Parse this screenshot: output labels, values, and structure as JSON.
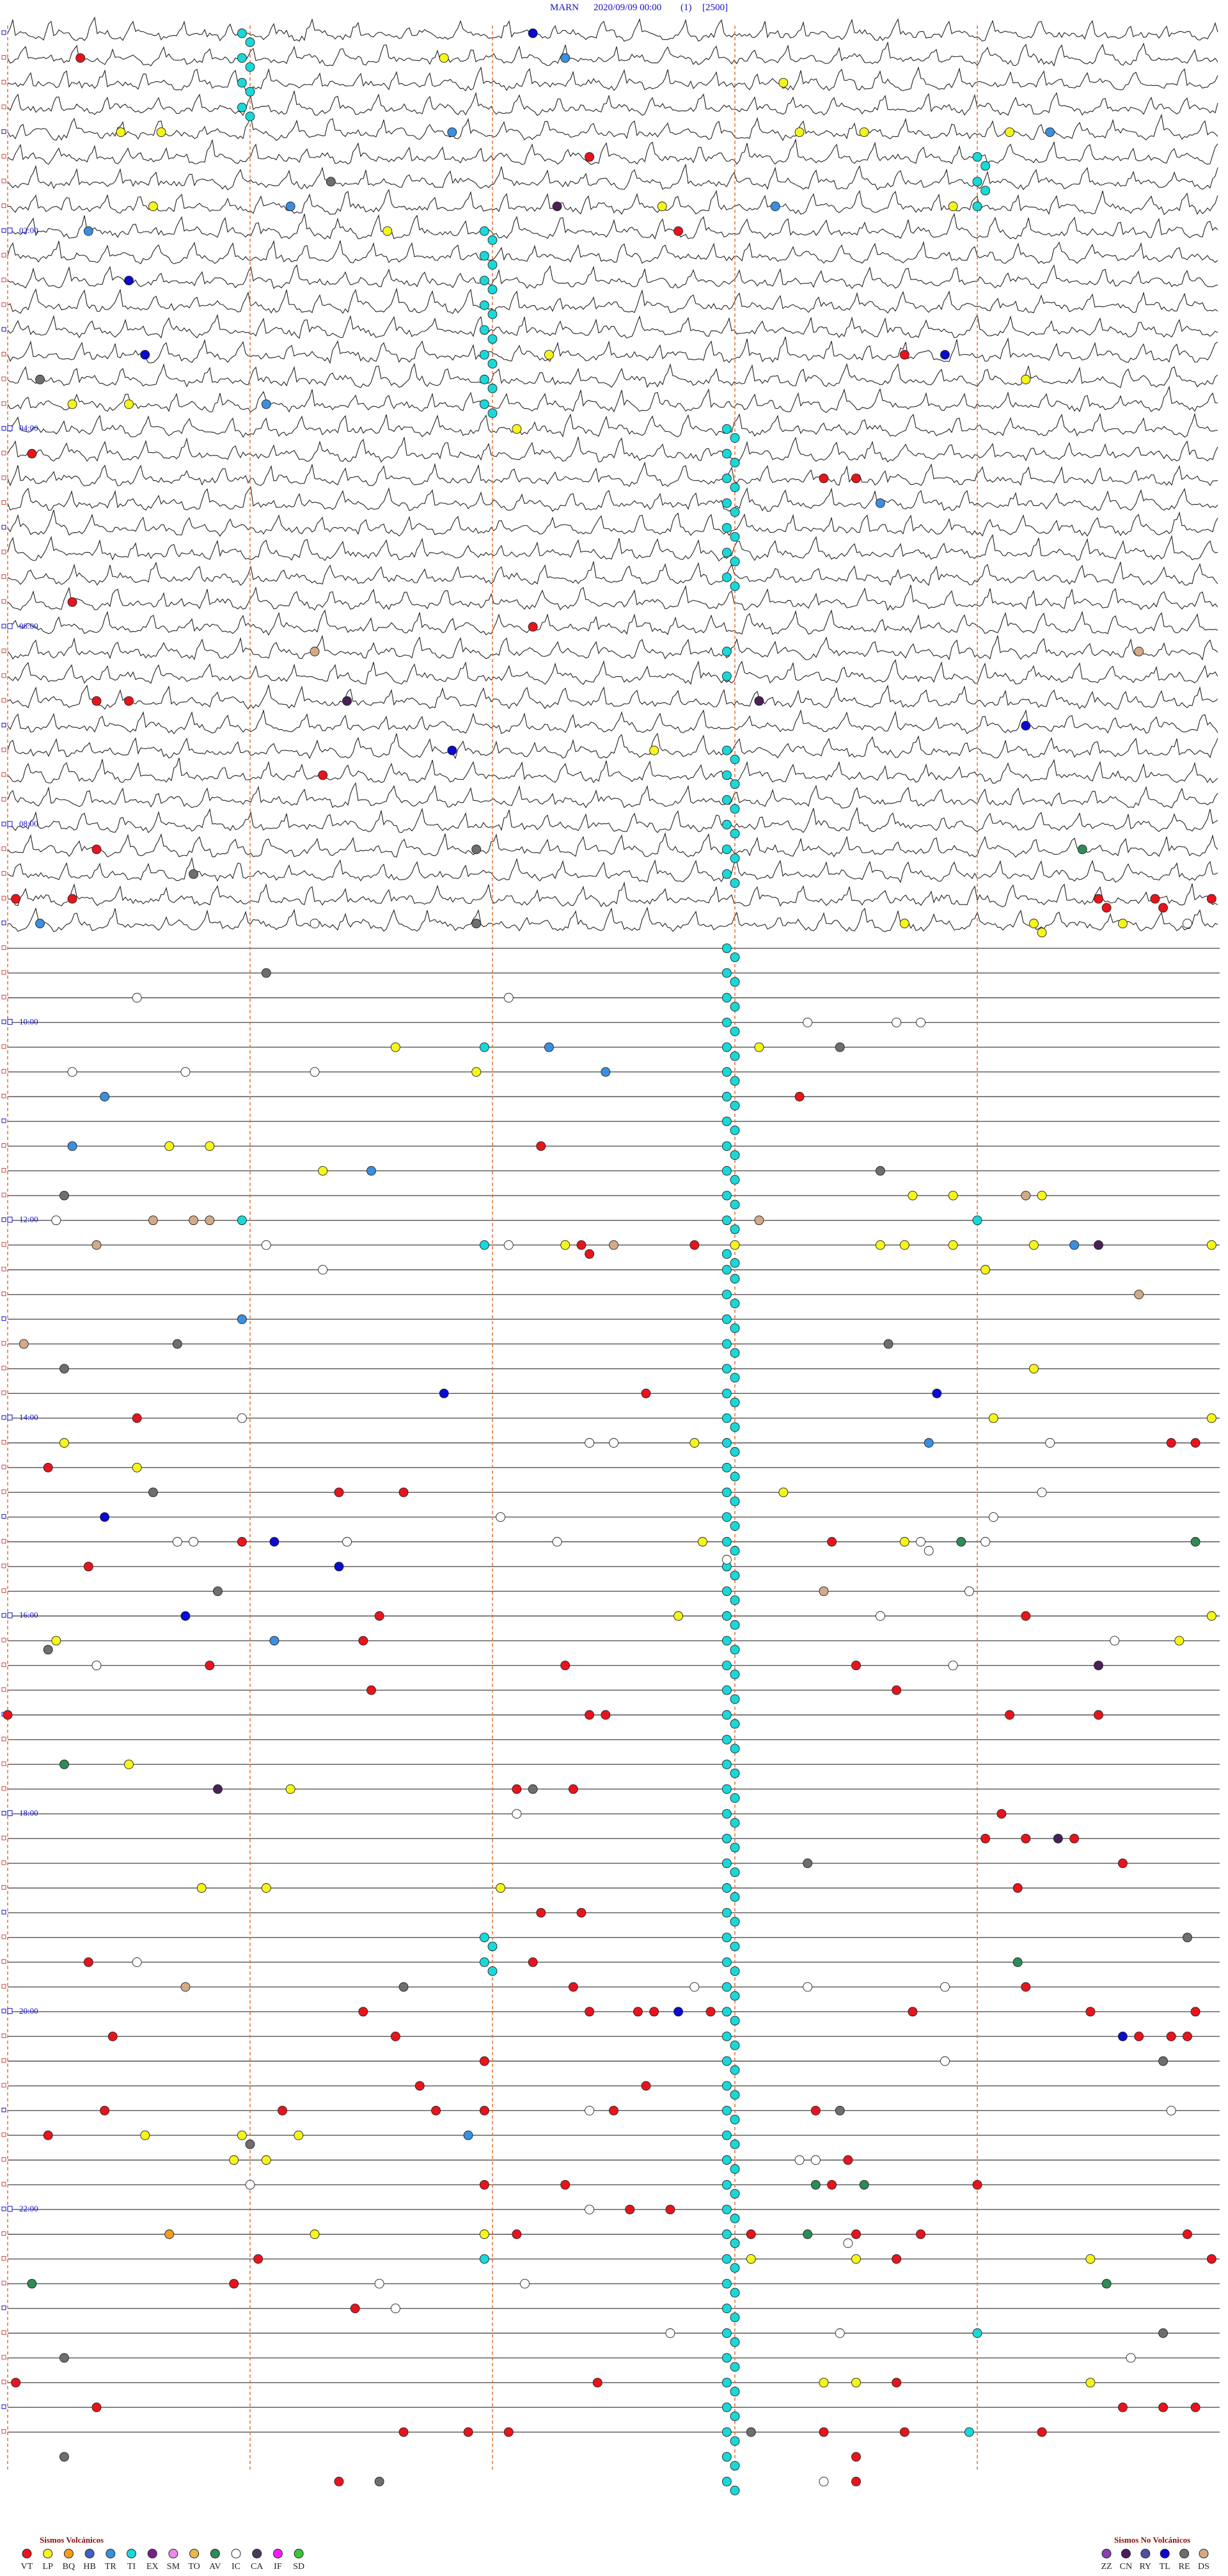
{
  "header": {
    "station": "MARN",
    "datetime": "2020/09/09 00:00",
    "channel": "(1)",
    "scale": "[2500]"
  },
  "time_labels": [
    "02:00",
    "04:00",
    "06:00",
    "08:00",
    "10:00",
    "12:00",
    "14:00",
    "16:00",
    "18:00",
    "20:00",
    "22:00"
  ],
  "legend": {
    "volcanic": {
      "title": "Sismos Volcánicos",
      "types": [
        {
          "code": "VT",
          "color": "#e8141c"
        },
        {
          "code": "LP",
          "color": "#f5f51a"
        },
        {
          "code": "BQ",
          "color": "#f59a23"
        },
        {
          "code": "HB",
          "color": "#4060c0"
        },
        {
          "code": "TR",
          "color": "#3a8fe0"
        },
        {
          "code": "TI",
          "color": "#19d8d8"
        },
        {
          "code": "EX",
          "color": "#7a1f8a"
        },
        {
          "code": "SM",
          "color": "#e98ae8"
        },
        {
          "code": "TO",
          "color": "#e8b84a"
        },
        {
          "code": "AV",
          "color": "#2e8b57"
        },
        {
          "code": "IC",
          "color": "#ffffff"
        },
        {
          "code": "CA",
          "color": "#4a3a5a"
        },
        {
          "code": "IF",
          "color": "#ff19ff"
        },
        {
          "code": "SD",
          "color": "#3cc43c"
        }
      ]
    },
    "non_volcanic": {
      "title": "Sismos No Volcánicos",
      "types": [
        {
          "code": "ZZ",
          "color": "#8a3fb0"
        },
        {
          "code": "CN",
          "color": "#4a2058"
        },
        {
          "code": "RY",
          "color": "#5050a0"
        },
        {
          "code": "TL",
          "color": "#0a0ad0"
        },
        {
          "code": "RE",
          "color": "#6e6e6e"
        },
        {
          "code": "DS",
          "color": "#d2aa88"
        }
      ]
    }
  },
  "events": {
    "VT": [
      15.9,
      82.2,
      128.3,
      206.1,
      255.3,
      280.1,
      280.5,
      345.8,
      366.5,
      406.1,
      406.5,
      453.9,
      496.1,
      525.1,
      525.8,
      538.5,
      538.6,
      539.2,
      539.3,
      539.9,
      654.8,
      681.6,
      742.1,
      742.2,
      743.5,
      832.9,
      841.6,
      869.4,
      869.7,
      870.5,
      889.9,
      889.1,
      917.9,
      925.2,
      931,
      964.6,
      972.6,
      979.4,
      996.9,
      1000.5,
      992.5,
      1009.5,
      1016,
      1032.4,
      1027.2,
      1027.4,
      1033.5,
      1020,
      1072,
      1071.3,
      1092.3,
      1107.1,
      1107.6,
      1108.2,
      1123.8,
      1137.5,
      1146.6,
      1147.1,
      1176.5,
      1171,
      1192,
      1197.6,
      1204.4,
      1207.2,
      1207.8,
      1208,
      1208.7,
      1211.2,
      1213.4,
      1214.7,
      1216.3,
      1229,
      1229.4,
      1229.6,
      1219.8,
      1252.9,
      1235.9,
      1250.1,
      1267.5,
      1263.4,
      1270,
      1261.2,
      1265.3,
      1265.9,
      1275.5,
      1300.4,
      1315.2,
      1310.9,
      1311.9,
      1317,
      1327.7,
      1328.2,
      1344.2,
      1345.5,
      1346.3,
      1349.6,
      1341.3,
      1353.1,
      1361,
      1364.9,
      1367.8,
      1384.3,
      1432.3,
      1436,
      1425.1,
      1453.8,
      1454.3,
      1454.7,
      1441.1,
      1459.9,
      1460.7,
      1461.2,
      1465.1,
      1466.1,
      1467.8,
      1480.5,
      1495.5,
      1489.1
    ],
    "LP": [
      20.4,
      61.4,
      61.9,
      69.8,
      70.6,
      72.4,
      39.6,
      106.8,
      113.1,
      116.7,
      124.7,
      201.7,
      222.6,
      225.8,
      226.5,
      246.3,
      443,
      551.1,
      552.7,
      552.8,
      553.8,
      619.8,
      624.3,
      635.8,
      677,
      677.5,
      693.9,
      716.2,
      716.7,
      717.8,
      741.9,
      744,
      745.8,
      746.1,
      746.7,
      747.7,
      749.9,
      762.1,
      822.7,
      852.2,
      854.9,
      855.7,
      863.5,
      871.6,
      894.6,
      923.6,
      926.1,
      968.3,
      975.6,
      989.5,
      974.9,
      1051.5,
      1068.5,
      1127.4,
      1128.2,
      1131.1,
      1276.7,
      1277.9,
      1278.6,
      1292.8,
      1293.2,
      1338.8,
      1340.9,
      1359.2,
      1360.5,
      1363.4,
      1435.1,
      1435.5,
      1438.4
    ],
    "BQ": [
      1337
    ],
    "TR": [
      21.9,
      65.5,
      72.9,
      108.5,
      114.5,
      121,
      228.2,
      295.8,
      540.4,
      621.7,
      637.4,
      646.2,
      675.8,
      694.5,
      748.2,
      782.9,
      866.4,
      978.3,
      1280.7
    ],
    "TI": [
      2.9,
      3,
      17.9,
      18,
      32.9,
      33,
      47.9,
      48,
      87,
      87.1,
      102,
      102.1,
      117,
      125.9,
      126,
      140.9,
      141,
      155.9,
      156,
      170.9,
      171,
      185.9,
      186,
      200.9,
      201,
      215.9,
      216,
      230.9,
      231,
      248.9,
      249,
      263.9,
      264,
      278.9,
      279,
      293.9,
      294,
      308.9,
      309,
      323.9,
      324,
      338.9,
      339,
      383.9,
      398.9,
      443.9,
      444,
      458.9,
      459,
      473.9,
      474,
      488.9,
      489,
      503.9,
      504,
      518.9,
      519,
      620.9,
      722.9,
      732,
      740.9,
      1160.9,
      1161,
      1175.9,
      1176,
      1355.9,
      1407,
      1466.9,
      563.9,
      564,
      578.9,
      579,
      593.9,
      594,
      608.9,
      609,
      623.9,
      624,
      638.9,
      639,
      653.9,
      654,
      668.9,
      669,
      683.9,
      684,
      698.9,
      699,
      713.9,
      714,
      728.9,
      729,
      743.9,
      744,
      758.9,
      759,
      773.9,
      774,
      788.9,
      789,
      803.9,
      804,
      818.9,
      819,
      833.9,
      834,
      848.9,
      849,
      863.9,
      864,
      878.9,
      879,
      893.9,
      894,
      908.9,
      909,
      923.9,
      924,
      938.9,
      939,
      953.9,
      954,
      968.9,
      969,
      983.9,
      984,
      998.9,
      999,
      1013.9,
      1014,
      1028.9,
      1029,
      1043.9,
      1044,
      1058.9,
      1059,
      1073.9,
      1074,
      1088.9,
      1089,
      1103.9,
      1104,
      1118.9,
      1119,
      1133.9,
      1134,
      1148.9,
      1149,
      1163.9,
      1164,
      1178.9,
      1179,
      1193.9,
      1194,
      1208.9,
      1209,
      1223.9,
      1224,
      1238.9,
      1239,
      1253.9,
      1254,
      1268.9,
      1269,
      1283.9,
      1284,
      1298.9,
      1299,
      1313.9,
      1314,
      1328.9,
      1329,
      1343.9,
      1344,
      1358.9,
      1359,
      1373.9,
      1374,
      1388.9,
      1389,
      1403.9,
      1404,
      1418.9,
      1419,
      1433.9,
      1434,
      1448.9,
      1449,
      1463.9,
      1464,
      1478.9,
      1479,
      1493.9,
      1494
    ],
    "TL": [
      6.5,
      151.5,
      196.7,
      206.6,
      440.5,
      432.6,
      836.5,
      830.4,
      901.2,
      918.3,
      934.1,
      962.2,
      1208.3,
      1228.8
    ],
    "RE": [
      94,
      210.4,
      500.8,
      512.3,
      545.8,
      573.2,
      625.3,
      700.8,
      705.7,
      797.1,
      805.9,
      810.7,
      886.8,
      947.6,
      975.5,
      1071.5,
      1119.9,
      1169.6,
      1189.9,
      1244.3,
      1270.3,
      1278,
      1409.3,
      1410.7,
      1464.2,
      1470.7,
      1489.6
    ],
    "CN": [
      111.8,
      409.2,
      414.3,
      748.5,
      1003.5,
      1067.6,
      1108
    ],
    "DS": [
      378.8,
      389,
      717.6,
      721.8,
      722.5,
      722.3,
      729.3,
      736.1,
      742.5,
      779,
      795.2,
      955.1,
      1187.2
    ],
    "AV": [
      508.3,
      929.7,
      926.8,
      1050.7,
      1182.5,
      1315,
      1315.6,
      1344.9,
      1378.6,
      1365.3
    ],
    "IC": [
      543.8,
      554.6,
      586.6,
      591.2,
      609.9,
      611,
      611.3,
      630.8,
      632.2,
      633.8,
      720.6,
      738.2,
      741.2,
      753.9,
      842.9,
      867.9,
      862.2,
      862.5,
      897.8,
      906.1,
      912.2,
      926.3,
      917.3,
      917.1,
      919.2,
      926.4,
      927.1,
      921.8,
      923.9,
      970.8,
      956.9,
      988.7,
      991.1,
      1001.7,
      1086.3,
      1171.6,
      1193.5,
      1194.9,
      1196.6,
      1241.6,
      1267.2,
      1274.4,
      1299.8,
      1300,
      1308,
      1327.2,
      1345.4,
      1369.6,
      1371.4,
      1384.8,
      1403.2,
      1405.3,
      1423.9,
      1495.1
    ]
  }
}
